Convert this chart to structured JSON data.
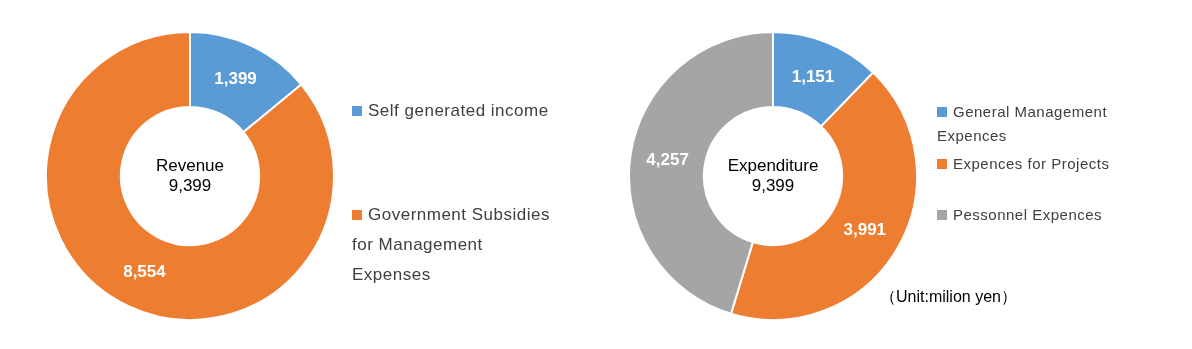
{
  "chart_data": [
    {
      "type": "donut",
      "title": "Revenue",
      "annotations": [
        "9,399"
      ],
      "categories": [
        "Self generated income",
        "Government Subsidies for Management Expenses"
      ],
      "values": [
        1399,
        8554
      ],
      "value_labels": [
        "1,399",
        "8,554"
      ],
      "colors": [
        "#5b9bd5",
        "#ed7d31"
      ],
      "legend": "right"
    },
    {
      "type": "donut",
      "title": "Expenditure",
      "annotations": [
        "9,399",
        "（Unit:milion yen）"
      ],
      "categories": [
        "General Management Expences",
        "Expences for Projects",
        "Pessonnel Expences"
      ],
      "values": [
        1151,
        3991,
        4257
      ],
      "value_labels": [
        "1,151",
        "3,991",
        "4,257"
      ],
      "colors": [
        "#5b9bd5",
        "#ed7d31",
        "#a5a5a5"
      ],
      "legend": "right"
    }
  ]
}
